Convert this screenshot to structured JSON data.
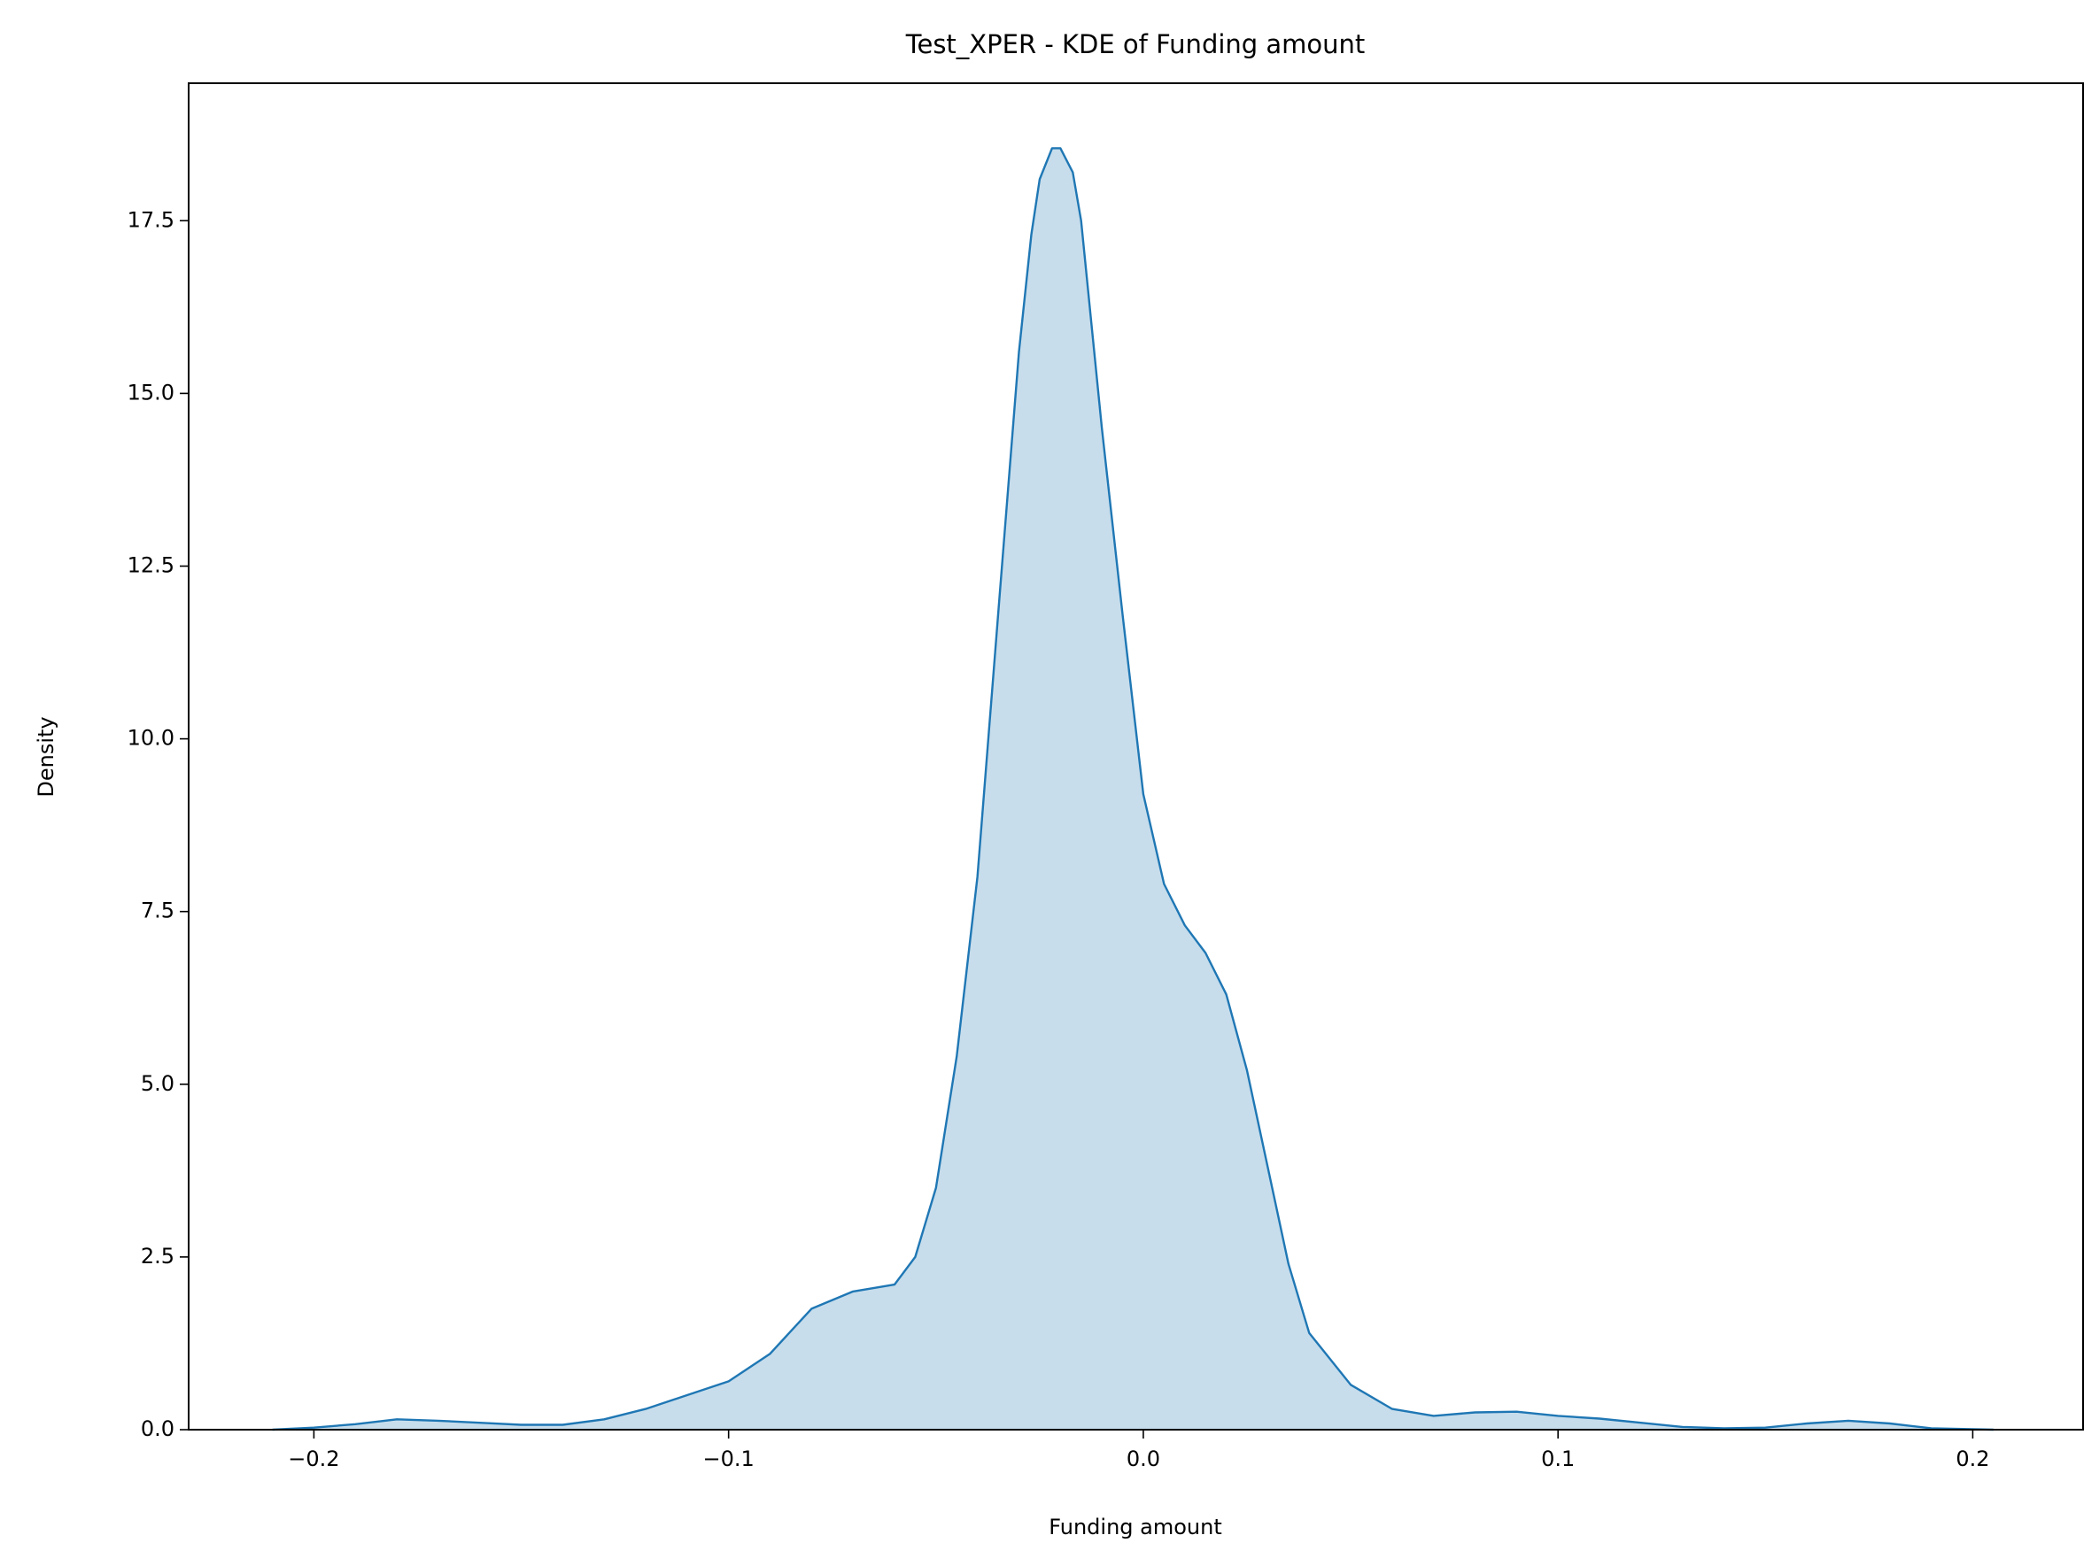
{
  "chart_data": {
    "type": "kde",
    "title": "Test_XPER - KDE of Funding amount",
    "x_label": "Funding amount",
    "y_label": "Density",
    "x": [
      -0.21,
      -0.2,
      -0.19,
      -0.18,
      -0.17,
      -0.16,
      -0.15,
      -0.14,
      -0.13,
      -0.12,
      -0.11,
      -0.1,
      -0.09,
      -0.08,
      -0.07,
      -0.06,
      -0.055,
      -0.05,
      -0.045,
      -0.04,
      -0.035,
      -0.03,
      -0.027,
      -0.025,
      -0.022,
      -0.02,
      -0.017,
      -0.015,
      -0.01,
      -0.005,
      0.0,
      0.005,
      0.01,
      0.015,
      0.02,
      0.025,
      0.03,
      0.035,
      0.04,
      0.05,
      0.06,
      0.07,
      0.08,
      0.09,
      0.1,
      0.11,
      0.12,
      0.13,
      0.14,
      0.15,
      0.16,
      0.17,
      0.18,
      0.19,
      0.205
    ],
    "values": [
      0.0,
      0.03,
      0.08,
      0.15,
      0.13,
      0.1,
      0.07,
      0.07,
      0.15,
      0.3,
      0.5,
      0.7,
      1.1,
      1.75,
      2.0,
      2.1,
      2.5,
      3.5,
      5.4,
      8.0,
      11.8,
      15.6,
      17.3,
      18.1,
      18.55,
      18.55,
      18.2,
      17.5,
      14.5,
      11.8,
      9.2,
      7.9,
      7.3,
      6.9,
      6.3,
      5.2,
      3.8,
      2.4,
      1.4,
      0.65,
      0.3,
      0.2,
      0.25,
      0.26,
      0.2,
      0.16,
      0.1,
      0.04,
      0.02,
      0.03,
      0.09,
      0.13,
      0.09,
      0.02,
      0.0
    ],
    "color": "#1f77b4",
    "fill": true,
    "xlim": [
      -0.2302,
      0.2266
    ],
    "xticks": [
      {
        "value": -0.2,
        "label": "−0.2"
      },
      {
        "value": -0.1,
        "label": "−0.1"
      },
      {
        "value": 0,
        "label": "0.0"
      },
      0.1,
      0.2
    ],
    "ylim": [
      0,
      19.49
    ],
    "yticks": [
      {
        "value": 0,
        "label": "0.0"
      },
      2.5,
      {
        "value": 5,
        "label": "5.0"
      },
      7.5,
      {
        "value": 10,
        "label": "10.0"
      },
      12.5,
      {
        "value": 15,
        "label": "15.0"
      },
      17.5
    ]
  }
}
